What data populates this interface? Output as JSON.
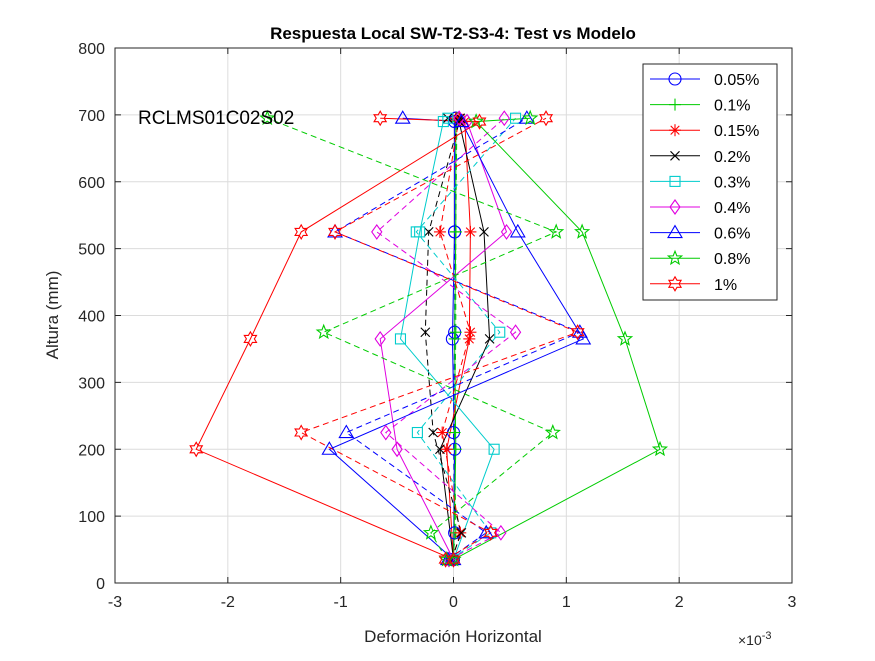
{
  "chart_data": {
    "type": "line",
    "title": "Respuesta Local SW-T2-S3-4: Test vs Modelo",
    "xlabel": "Deformación Horizontal",
    "ylabel": "Altura (mm)",
    "x_exponent_base": "×10",
    "x_exponent_power": "-3",
    "annotation": "RCLMS01C02S02",
    "xlim": [
      -3,
      3
    ],
    "ylim": [
      0,
      800
    ],
    "xticks": [
      -3,
      -2,
      -1,
      0,
      1,
      2,
      3
    ],
    "yticks": [
      0,
      100,
      200,
      300,
      400,
      500,
      600,
      700,
      800
    ],
    "grid": true,
    "legend_position": "top-right",
    "series": [
      {
        "name": "0.05%",
        "color": "#0000ff",
        "marker": "circle",
        "test": {
          "x": [
            0,
            0.01,
            -0.01,
            0.01,
            0.01,
            0.02
          ],
          "y": [
            35,
            200,
            365,
            525,
            690,
            695
          ]
        },
        "model": {
          "x": [
            -0.01,
            0.01,
            0.0,
            0.01,
            0.01,
            0.02
          ],
          "y": [
            35,
            75,
            225,
            375,
            525,
            695
          ]
        }
      },
      {
        "name": "0.1%",
        "color": "#00cc00",
        "marker": "plus",
        "test": {
          "x": [
            0,
            0.02,
            0.01,
            0.02,
            0.02,
            0.03
          ],
          "y": [
            35,
            200,
            365,
            525,
            690,
            695
          ]
        },
        "model": {
          "x": [
            -0.01,
            0.02,
            0.01,
            0.02,
            0.02,
            0.03
          ],
          "y": [
            35,
            75,
            225,
            375,
            525,
            695
          ]
        }
      },
      {
        "name": "0.15%",
        "color": "#ff0000",
        "marker": "asterisk",
        "test": {
          "x": [
            0,
            -0.06,
            0.14,
            0.15,
            0.1,
            0.02
          ],
          "y": [
            35,
            200,
            365,
            525,
            690,
            695
          ]
        },
        "model": {
          "x": [
            -0.01,
            0.06,
            -0.1,
            0.15,
            -0.12,
            0.05
          ],
          "y": [
            35,
            75,
            225,
            375,
            525,
            695
          ]
        }
      },
      {
        "name": "0.2%",
        "color": "#000000",
        "marker": "x",
        "test": {
          "x": [
            0,
            -0.12,
            0.32,
            0.27,
            0.05,
            -0.05
          ],
          "y": [
            35,
            200,
            365,
            525,
            690,
            695
          ]
        },
        "model": {
          "x": [
            -0.02,
            0.07,
            -0.18,
            -0.25,
            -0.22,
            0.06
          ],
          "y": [
            35,
            75,
            225,
            375,
            525,
            695
          ]
        }
      },
      {
        "name": "0.3%",
        "color": "#00cccc",
        "marker": "square",
        "test": {
          "x": [
            0,
            0.36,
            -0.47,
            -0.3,
            -0.09,
            -0.05
          ],
          "y": [
            35,
            200,
            365,
            525,
            690,
            695
          ]
        },
        "model": {
          "x": [
            -0.03,
            0.33,
            -0.32,
            0.41,
            -0.33,
            0.55
          ],
          "y": [
            35,
            75,
            225,
            375,
            525,
            695
          ]
        }
      },
      {
        "name": "0.4%",
        "color": "#e000e0",
        "marker": "diamond",
        "test": {
          "x": [
            0,
            -0.5,
            -0.65,
            0.47,
            0.12,
            0.05
          ],
          "y": [
            35,
            200,
            365,
            525,
            690,
            695
          ]
        },
        "model": {
          "x": [
            -0.04,
            0.42,
            -0.6,
            0.55,
            -0.68,
            0.45
          ],
          "y": [
            35,
            75,
            225,
            375,
            525,
            695
          ]
        }
      },
      {
        "name": "0.6%",
        "color": "#0000ff",
        "marker": "triangle",
        "test": {
          "x": [
            0,
            -1.1,
            1.15,
            0.57,
            0.07,
            -0.45
          ],
          "y": [
            35,
            200,
            365,
            525,
            690,
            695
          ]
        },
        "model": {
          "x": [
            -0.05,
            0.29,
            -0.95,
            1.12,
            -1.05,
            0.65
          ],
          "y": [
            35,
            75,
            225,
            375,
            525,
            695
          ]
        }
      },
      {
        "name": "0.8%",
        "color": "#00cc00",
        "marker": "pentagram",
        "test": {
          "x": [
            0,
            1.83,
            1.52,
            1.14,
            0.2,
            0.68
          ],
          "y": [
            35,
            200,
            365,
            525,
            690,
            695
          ]
        },
        "model": {
          "x": [
            -0.06,
            -0.2,
            0.88,
            -1.15,
            0.91,
            -1.65
          ],
          "y": [
            35,
            75,
            225,
            375,
            525,
            695
          ]
        }
      },
      {
        "name": "1%",
        "color": "#ff0000",
        "marker": "hexagram",
        "test": {
          "x": [
            0,
            -2.28,
            -1.8,
            -1.35,
            0.23,
            -0.65
          ],
          "y": [
            35,
            200,
            365,
            525,
            690,
            695
          ]
        },
        "model": {
          "x": [
            -0.07,
            0.33,
            -1.35,
            1.1,
            -1.05,
            0.82
          ],
          "y": [
            35,
            75,
            225,
            375,
            525,
            695
          ]
        }
      }
    ]
  }
}
